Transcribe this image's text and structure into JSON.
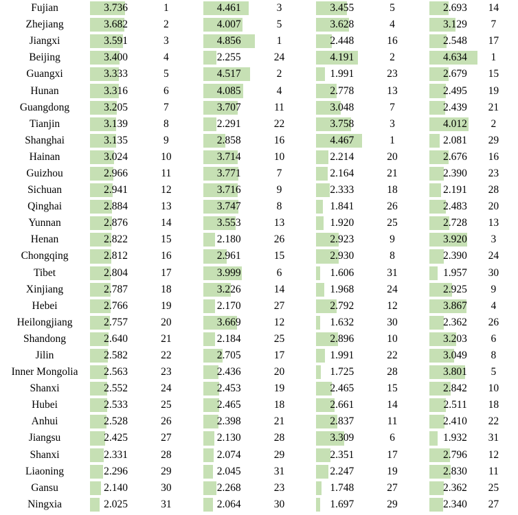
{
  "rows": [
    {
      "province": "Fujian",
      "s1": "3.736",
      "r1": "1",
      "s2": "4.461",
      "r2": "3",
      "s3": "3.455",
      "r3": "5",
      "s4": "2.693",
      "r4": "14"
    },
    {
      "province": "Zhejiang",
      "s1": "3.682",
      "r1": "2",
      "s2": "4.007",
      "r2": "5",
      "s3": "3.628",
      "r3": "4",
      "s4": "3.129",
      "r4": "7"
    },
    {
      "province": "Jiangxi",
      "s1": "3.591",
      "r1": "3",
      "s2": "4.856",
      "r2": "1",
      "s3": "2.448",
      "r3": "16",
      "s4": "2.548",
      "r4": "17"
    },
    {
      "province": "Beijing",
      "s1": "3.400",
      "r1": "4",
      "s2": "2.255",
      "r2": "24",
      "s3": "4.191",
      "r3": "2",
      "s4": "4.634",
      "r4": "1"
    },
    {
      "province": "Guangxi",
      "s1": "3.333",
      "r1": "5",
      "s2": "4.517",
      "r2": "2",
      "s3": "1.991",
      "r3": "23",
      "s4": "2.679",
      "r4": "15"
    },
    {
      "province": "Hunan",
      "s1": "3.316",
      "r1": "6",
      "s2": "4.085",
      "r2": "4",
      "s3": "2.778",
      "r3": "13",
      "s4": "2.495",
      "r4": "19"
    },
    {
      "province": "Guangdong",
      "s1": "3.205",
      "r1": "7",
      "s2": "3.707",
      "r2": "11",
      "s3": "3.048",
      "r3": "7",
      "s4": "2.439",
      "r4": "21"
    },
    {
      "province": "Tianjin",
      "s1": "3.139",
      "r1": "8",
      "s2": "2.291",
      "r2": "22",
      "s3": "3.758",
      "r3": "3",
      "s4": "4.012",
      "r4": "2"
    },
    {
      "province": "Shanghai",
      "s1": "3.135",
      "r1": "9",
      "s2": "2.858",
      "r2": "16",
      "s3": "4.467",
      "r3": "1",
      "s4": "2.081",
      "r4": "29"
    },
    {
      "province": "Hainan",
      "s1": "3.024",
      "r1": "10",
      "s2": "3.714",
      "r2": "10",
      "s3": "2.214",
      "r3": "20",
      "s4": "2.676",
      "r4": "16"
    },
    {
      "province": "Guizhou",
      "s1": "2.966",
      "r1": "11",
      "s2": "3.771",
      "r2": "7",
      "s3": "2.164",
      "r3": "21",
      "s4": "2.390",
      "r4": "23"
    },
    {
      "province": "Sichuan",
      "s1": "2.941",
      "r1": "12",
      "s2": "3.716",
      "r2": "9",
      "s3": "2.333",
      "r3": "18",
      "s4": "2.191",
      "r4": "28"
    },
    {
      "province": "Qinghai",
      "s1": "2.884",
      "r1": "13",
      "s2": "3.747",
      "r2": "8",
      "s3": "1.841",
      "r3": "26",
      "s4": "2.483",
      "r4": "20"
    },
    {
      "province": "Yunnan",
      "s1": "2.876",
      "r1": "14",
      "s2": "3.553",
      "r2": "13",
      "s3": "1.920",
      "r3": "25",
      "s4": "2.728",
      "r4": "13"
    },
    {
      "province": "Henan",
      "s1": "2.822",
      "r1": "15",
      "s2": "2.180",
      "r2": "26",
      "s3": "2.923",
      "r3": "9",
      "s4": "3.920",
      "r4": "3"
    },
    {
      "province": "Chongqing",
      "s1": "2.812",
      "r1": "16",
      "s2": "2.961",
      "r2": "15",
      "s3": "2.930",
      "r3": "8",
      "s4": "2.390",
      "r4": "24"
    },
    {
      "province": "Tibet",
      "s1": "2.804",
      "r1": "17",
      "s2": "3.999",
      "r2": "6",
      "s3": "1.606",
      "r3": "31",
      "s4": "1.957",
      "r4": "30"
    },
    {
      "province": "Xinjiang",
      "s1": "2.787",
      "r1": "18",
      "s2": "3.226",
      "r2": "14",
      "s3": "1.968",
      "r3": "24",
      "s4": "2.925",
      "r4": "9"
    },
    {
      "province": "Hebei",
      "s1": "2.766",
      "r1": "19",
      "s2": "2.170",
      "r2": "27",
      "s3": "2.792",
      "r3": "12",
      "s4": "3.867",
      "r4": "4"
    },
    {
      "province": "Heilongjiang",
      "s1": "2.757",
      "r1": "20",
      "s2": "3.669",
      "r2": "12",
      "s3": "1.632",
      "r3": "30",
      "s4": "2.362",
      "r4": "26"
    },
    {
      "province": "Shandong",
      "s1": "2.640",
      "r1": "21",
      "s2": "2.184",
      "r2": "25",
      "s3": "2.896",
      "r3": "10",
      "s4": "3.203",
      "r4": "6"
    },
    {
      "province": "Jilin",
      "s1": "2.582",
      "r1": "22",
      "s2": "2.705",
      "r2": "17",
      "s3": "1.991",
      "r3": "22",
      "s4": "3.049",
      "r4": "8"
    },
    {
      "province": "Inner Mongolia",
      "s1": "2.563",
      "r1": "23",
      "s2": "2.436",
      "r2": "20",
      "s3": "1.725",
      "r3": "28",
      "s4": "3.801",
      "r4": "5"
    },
    {
      "province": "Shanxi",
      "s1": "2.552",
      "r1": "24",
      "s2": "2.453",
      "r2": "19",
      "s3": "2.465",
      "r3": "15",
      "s4": "2.842",
      "r4": "10"
    },
    {
      "province": "Hubei",
      "s1": "2.533",
      "r1": "25",
      "s2": "2.465",
      "r2": "18",
      "s3": "2.661",
      "r3": "14",
      "s4": "2.511",
      "r4": "18"
    },
    {
      "province": "Anhui",
      "s1": "2.528",
      "r1": "26",
      "s2": "2.398",
      "r2": "21",
      "s3": "2.837",
      "r3": "11",
      "s4": "2.410",
      "r4": "22"
    },
    {
      "province": "Jiangsu",
      "s1": "2.425",
      "r1": "27",
      "s2": "2.130",
      "r2": "28",
      "s3": "3.309",
      "r3": "6",
      "s4": "1.932",
      "r4": "31"
    },
    {
      "province": "Shanxi",
      "s1": "2.331",
      "r1": "28",
      "s2": "2.074",
      "r2": "29",
      "s3": "2.351",
      "r3": "17",
      "s4": "2.796",
      "r4": "12"
    },
    {
      "province": "Liaoning",
      "s1": "2.296",
      "r1": "29",
      "s2": "2.045",
      "r2": "31",
      "s3": "2.247",
      "r3": "19",
      "s4": "2.830",
      "r4": "11"
    },
    {
      "province": "Gansu",
      "s1": "2.140",
      "r1": "30",
      "s2": "2.268",
      "r2": "23",
      "s3": "1.748",
      "r3": "27",
      "s4": "2.362",
      "r4": "25"
    },
    {
      "province": "Ningxia",
      "s1": "2.025",
      "r1": "31",
      "s2": "2.064",
      "r2": "30",
      "s3": "1.697",
      "r3": "29",
      "s4": "2.340",
      "r4": "27"
    }
  ],
  "bar_color": "#c6e0b4"
}
